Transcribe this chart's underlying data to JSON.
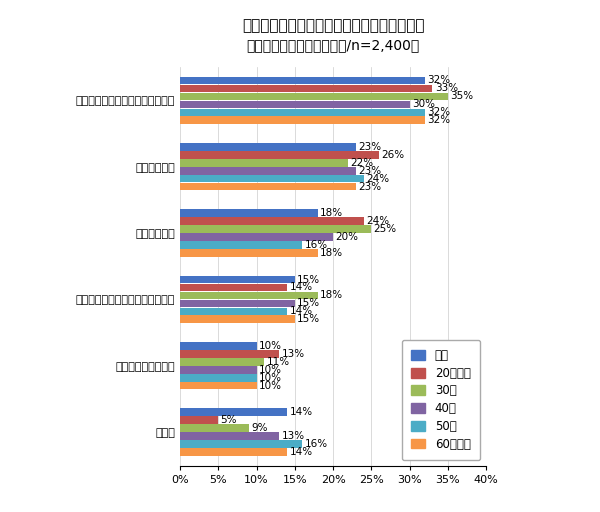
{
  "title": "図柄入りナンバープレートにしていない理由",
  "subtitle": "（クルマ保有者　複数回答/n=2,400）",
  "categories": [
    "自身の地域の図柄が好みではない",
    "お金がかかる",
    "手続きが面倒",
    "クルマにそれほど思い入れがない",
    "制度を知らなかった",
    "その他"
  ],
  "series_labels": [
    "全体",
    "20代以下",
    "30代",
    "40代",
    "50代",
    "60代以上"
  ],
  "colors": [
    "#4472c4",
    "#c0504d",
    "#9bbb59",
    "#8064a2",
    "#4bacc6",
    "#f79646"
  ],
  "data": {
    "自身の地域の図柄が好みではない": [
      32,
      33,
      35,
      30,
      32,
      32
    ],
    "お金がかかる": [
      23,
      26,
      22,
      23,
      24,
      23
    ],
    "手続きが面倒": [
      18,
      24,
      25,
      20,
      16,
      18
    ],
    "クルマにそれほど思い入れがない": [
      15,
      14,
      18,
      15,
      14,
      15
    ],
    "制度を知らなかった": [
      10,
      13,
      11,
      10,
      10,
      10
    ],
    "その他": [
      14,
      5,
      9,
      13,
      16,
      14
    ]
  },
  "xlim": [
    0,
    40
  ],
  "xticks": [
    0,
    5,
    10,
    15,
    20,
    25,
    30,
    35,
    40
  ],
  "xticklabels": [
    "0%",
    "5%",
    "10%",
    "15%",
    "20%",
    "25%",
    "30%",
    "35%",
    "40%"
  ],
  "background_color": "#ffffff",
  "title_fontsize": 11,
  "subtitle_fontsize": 10,
  "tick_fontsize": 8,
  "value_fontsize": 7.5
}
